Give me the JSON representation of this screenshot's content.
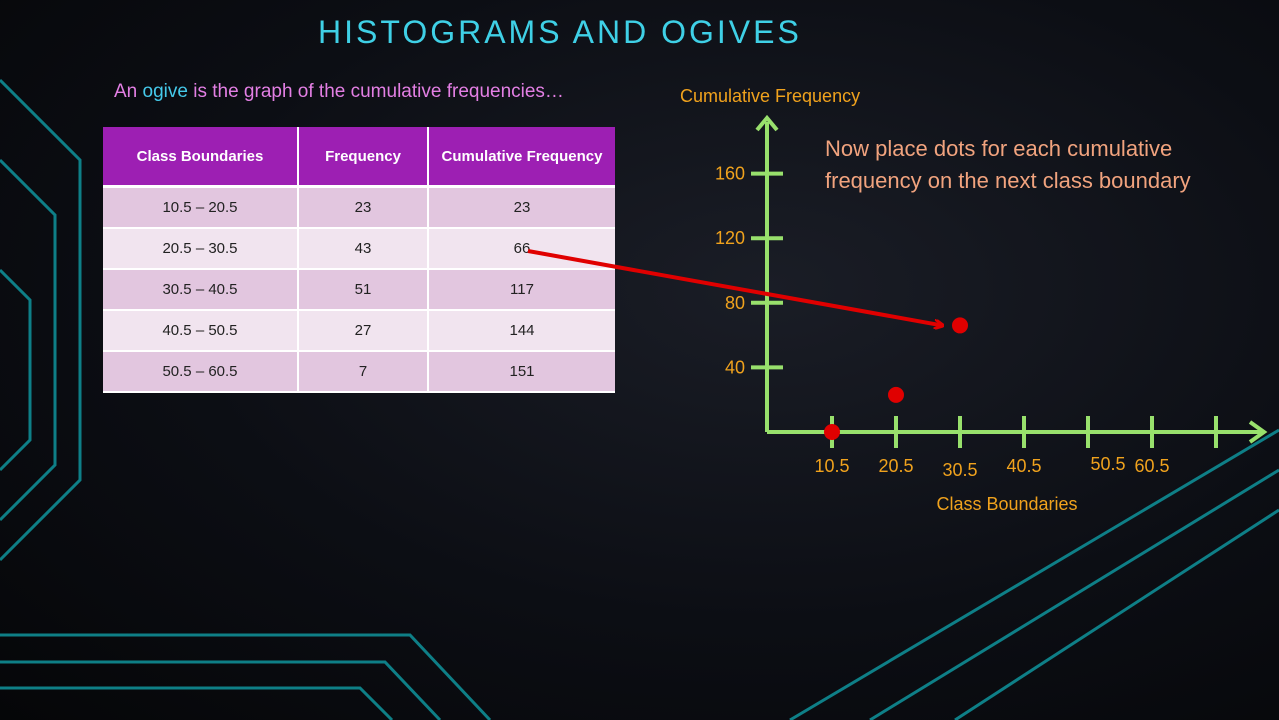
{
  "slide": {
    "title": "HISTOGRAMS AND OGIVES",
    "subtitle_pre": "An ",
    "subtitle_highlight": "ogive",
    "subtitle_post": " is the graph of the cumulative frequencies…",
    "note": "Now place dots for each cumulative frequency on the next class boundary"
  },
  "table": {
    "headers": [
      "Class Boundaries",
      "Frequency",
      "Cumulative Frequency"
    ],
    "rows": [
      [
        "10.5 – 20.5",
        "23",
        "23"
      ],
      [
        "20.5 – 30.5",
        "43",
        "66"
      ],
      [
        "30.5 – 40.5",
        "51",
        "117"
      ],
      [
        "40.5 – 50.5",
        "27",
        "144"
      ],
      [
        "50.5 – 60.5",
        "7",
        "151"
      ]
    ]
  },
  "colors": {
    "title": "#3fd0e6",
    "subtitle": "#e37fe4",
    "highlight": "#45c9ea",
    "header_bg": "#9d1fb3",
    "axis": "#98e06c",
    "tick_label": "#f0a21d",
    "point": "#e00000",
    "arrow": "#e00000",
    "note": "#f1a37e",
    "deco_lines": "#0f8c94"
  },
  "chart_data": {
    "type": "scatter",
    "xlabel": "Class Boundaries",
    "ylabel": "Cumulative Frequency",
    "x_ticks": [
      "10.5",
      "20.5",
      "30.5",
      "40.5",
      "50.5",
      "60.5"
    ],
    "y_ticks": [
      "40",
      "80",
      "120",
      "160"
    ],
    "ylim": [
      0,
      160
    ],
    "points": [
      {
        "x": 10.5,
        "y": 0
      },
      {
        "x": 20.5,
        "y": 23
      },
      {
        "x": 30.5,
        "y": 66
      }
    ],
    "annotation": {
      "type": "arrow",
      "from_table_value": "66",
      "to_point": {
        "x": 30.5,
        "y": 66
      }
    },
    "grid": false
  }
}
